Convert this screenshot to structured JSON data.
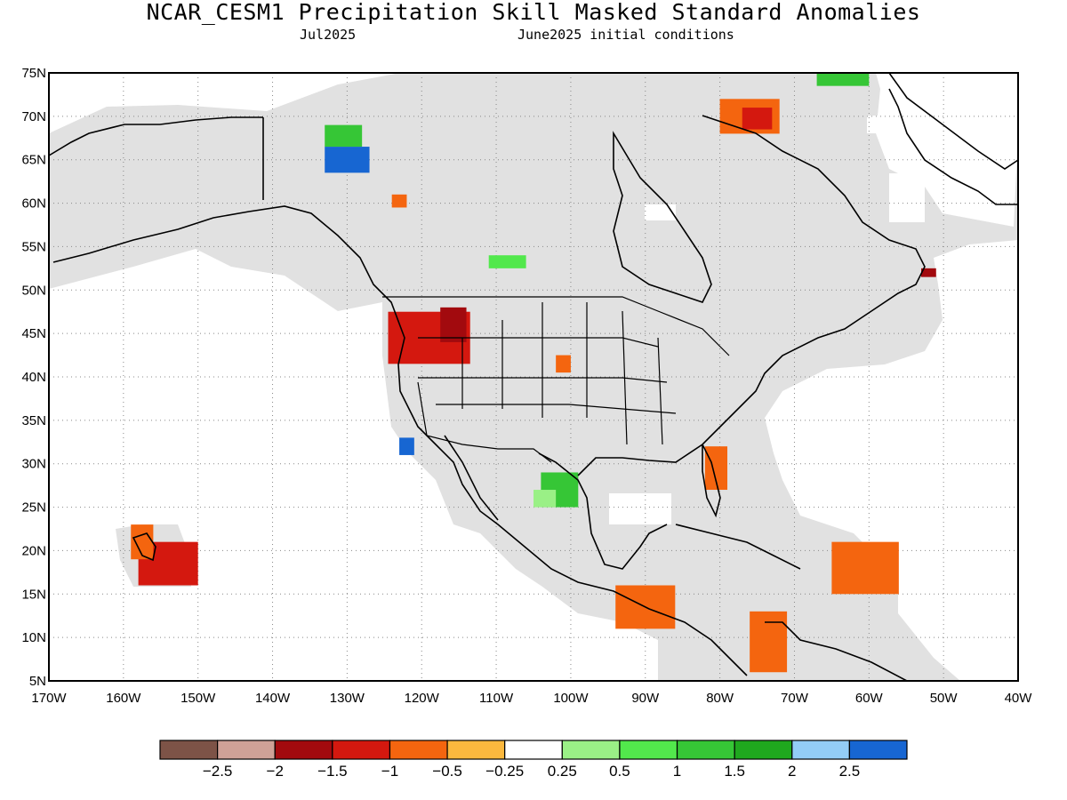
{
  "title": "NCAR_CESM1 Precipitation Skill Masked Standard Anomalies",
  "subtitle_left": "Jul2025",
  "subtitle_right": "June2025 initial conditions",
  "map": {
    "lon_min": -170,
    "lon_max": -40,
    "lat_min": 5,
    "lat_max": 75,
    "lat_ticks": [
      {
        "v": 75,
        "label": "75N"
      },
      {
        "v": 70,
        "label": "70N"
      },
      {
        "v": 65,
        "label": "65N"
      },
      {
        "v": 60,
        "label": "60N"
      },
      {
        "v": 55,
        "label": "55N"
      },
      {
        "v": 50,
        "label": "50N"
      },
      {
        "v": 45,
        "label": "45N"
      },
      {
        "v": 40,
        "label": "40N"
      },
      {
        "v": 35,
        "label": "35N"
      },
      {
        "v": 30,
        "label": "30N"
      },
      {
        "v": 25,
        "label": "25N"
      },
      {
        "v": 20,
        "label": "20N"
      },
      {
        "v": 15,
        "label": "15N"
      },
      {
        "v": 10,
        "label": "10N"
      },
      {
        "v": 5,
        "label": "5N"
      }
    ],
    "lon_ticks": [
      {
        "v": -170,
        "label": "170W"
      },
      {
        "v": -160,
        "label": "160W"
      },
      {
        "v": -150,
        "label": "150W"
      },
      {
        "v": -140,
        "label": "140W"
      },
      {
        "v": -130,
        "label": "130W"
      },
      {
        "v": -120,
        "label": "120W"
      },
      {
        "v": -110,
        "label": "110W"
      },
      {
        "v": -100,
        "label": "100W"
      },
      {
        "v": -90,
        "label": "90W"
      },
      {
        "v": -80,
        "label": "80W"
      },
      {
        "v": -70,
        "label": "70W"
      },
      {
        "v": -60,
        "label": "60W"
      },
      {
        "v": -50,
        "label": "50W"
      },
      {
        "v": -40,
        "label": "40W"
      }
    ],
    "grid": "dotted"
  },
  "colorbar": {
    "colors": [
      "#7d5347",
      "#cfa197",
      "#a20a0e",
      "#d4180f",
      "#f4650f",
      "#fbb83e",
      "#ffffff",
      "#9af086",
      "#52e84c",
      "#36c636",
      "#1fa81e",
      "#93cdf6",
      "#1766d2"
    ],
    "labels": [
      "−2.5",
      "−2",
      "−1.5",
      "−1",
      "−0.5",
      "−0.25",
      "0.25",
      "0.5",
      "1",
      "1.5",
      "2",
      "2.5"
    ]
  },
  "mask_color": "#e1e1e1",
  "anomaly_patches": [
    {
      "region": "Oregon/Idaho",
      "color": "#d4180f",
      "lon": [
        -124.5,
        -113.5
      ],
      "lat": [
        41.5,
        47.5
      ]
    },
    {
      "region": "Idaho core",
      "color": "#a20a0e",
      "lon": [
        -117.5,
        -114
      ],
      "lat": [
        44,
        48
      ]
    },
    {
      "region": "Florida",
      "color": "#f4650f",
      "lon": [
        -82,
        -79
      ],
      "lat": [
        27,
        32
      ]
    },
    {
      "region": "Hawaii",
      "color": "#d4180f",
      "lon": [
        -158,
        -150
      ],
      "lat": [
        16,
        21
      ]
    },
    {
      "region": "Hawaii north",
      "color": "#f4650f",
      "lon": [
        -159,
        -156
      ],
      "lat": [
        19,
        23
      ]
    },
    {
      "region": "Caribbean",
      "color": "#f4650f",
      "lon": [
        -65,
        -56
      ],
      "lat": [
        15,
        21
      ]
    },
    {
      "region": "Colombia",
      "color": "#f4650f",
      "lon": [
        -76,
        -71
      ],
      "lat": [
        6,
        13
      ]
    },
    {
      "region": "Guatemala/Honduras",
      "color": "#f4650f",
      "lon": [
        -94,
        -86
      ],
      "lat": [
        11,
        16
      ]
    },
    {
      "region": "Hudson Strait",
      "color": "#f4650f",
      "lon": [
        -80,
        -72
      ],
      "lat": [
        68,
        72
      ]
    },
    {
      "region": "Baffin core",
      "color": "#d4180f",
      "lon": [
        -77,
        -73
      ],
      "lat": [
        68.5,
        71
      ]
    },
    {
      "region": "Nebraska",
      "color": "#f4650f",
      "lon": [
        -102,
        -100
      ],
      "lat": [
        40.5,
        42.5
      ]
    },
    {
      "region": "Alaska interior",
      "color": "#1766d2",
      "lon": [
        -133,
        -127
      ],
      "lat": [
        63.5,
        66.5
      ]
    },
    {
      "region": "Alaska north",
      "color": "#36c636",
      "lon": [
        -133,
        -128
      ],
      "lat": [
        66.5,
        69
      ]
    },
    {
      "region": "Baja offshore",
      "color": "#1766d2",
      "lon": [
        -123,
        -121
      ],
      "lat": [
        31,
        33
      ]
    },
    {
      "region": "Mexico NE",
      "color": "#36c636",
      "lon": [
        -104,
        -99
      ],
      "lat": [
        25,
        29
      ]
    },
    {
      "region": "Mexico NE light",
      "color": "#9af086",
      "lon": [
        -105,
        -102
      ],
      "lat": [
        25,
        27
      ]
    },
    {
      "region": "Greenland SW",
      "color": "#36c636",
      "lon": [
        -67,
        -60
      ],
      "lat": [
        73.5,
        75
      ]
    },
    {
      "region": "Alberta",
      "color": "#52e84c",
      "lon": [
        -111,
        -106
      ],
      "lat": [
        52.5,
        54
      ]
    },
    {
      "region": "Yukon",
      "color": "#f4650f",
      "lon": [
        -124,
        -122
      ],
      "lat": [
        59.5,
        61
      ]
    },
    {
      "region": "Newfoundland",
      "color": "#a20a0e",
      "lon": [
        -53,
        -51
      ],
      "lat": [
        51.5,
        52.5
      ]
    }
  ]
}
